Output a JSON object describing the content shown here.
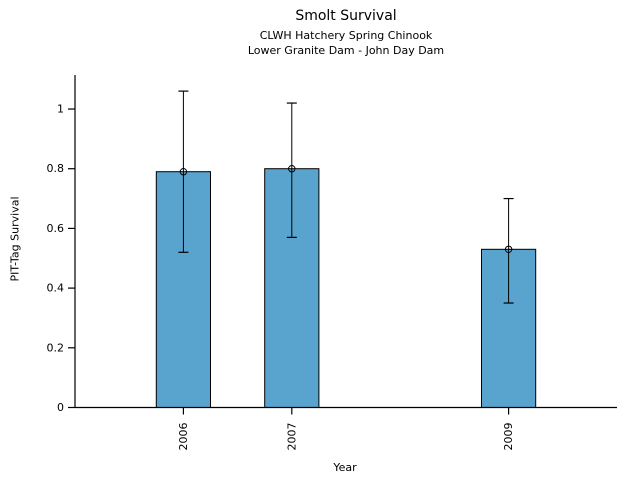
{
  "chart_data": {
    "type": "bar",
    "title": "Smolt Survival",
    "subtitle_line1": "CLWH Hatchery Spring Chinook",
    "subtitle_line2": "Lower Granite Dam - John Day Dam",
    "xlabel": "Year",
    "ylabel": "PIT-Tag Survival",
    "categories": [
      "2006",
      "2007",
      "2009"
    ],
    "x": [
      2006,
      2007,
      2009
    ],
    "values": [
      0.79,
      0.8,
      0.53
    ],
    "error_low": [
      0.52,
      0.57,
      0.35
    ],
    "error_high": [
      1.06,
      1.02,
      0.7
    ],
    "marker": "open-circle",
    "bar_width_years": 0.5,
    "xlim": [
      2005,
      2010
    ],
    "ylim": [
      0,
      1.114
    ],
    "yticks": [
      0,
      0.2,
      0.4,
      0.6,
      0.8,
      1
    ],
    "ytick_labels": [
      "0",
      "0.2",
      "0.4",
      "0.6",
      "0.8",
      "1"
    ],
    "xtick_rotation_deg": 90,
    "grid": false,
    "legend": "none",
    "colors": {
      "bar_fill": "#58A4CE",
      "bar_edge": "#000000",
      "error_bar": "#000000",
      "marker_stroke": "#000000",
      "axis": "#000000",
      "text": "#000000",
      "background": "#FFFFFF"
    }
  }
}
